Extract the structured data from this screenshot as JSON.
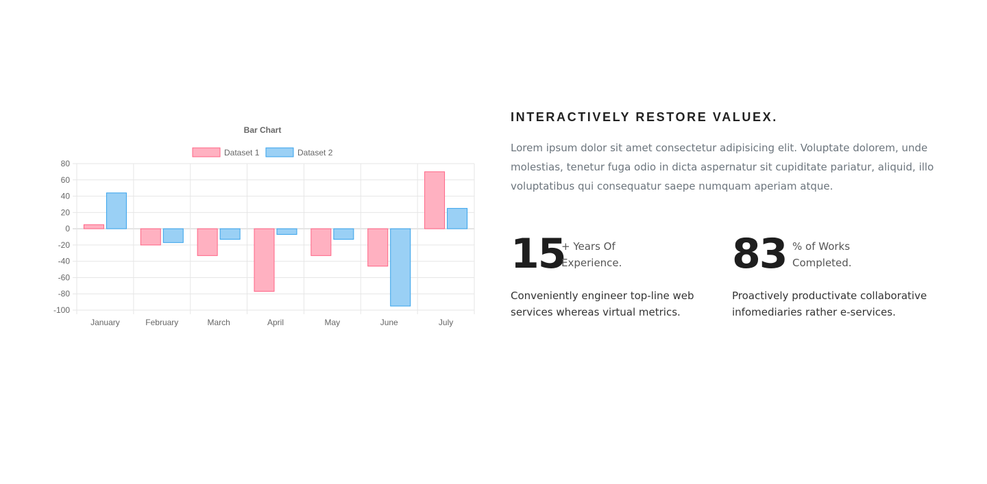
{
  "chart_data": {
    "type": "bar",
    "title": "Bar Chart",
    "categories": [
      "January",
      "February",
      "March",
      "April",
      "May",
      "June",
      "July"
    ],
    "series": [
      {
        "name": "Dataset 1",
        "values": [
          5,
          -20,
          -33,
          -77,
          -33,
          -46,
          70
        ],
        "color": "#ffb1c1",
        "border": "#ff6384"
      },
      {
        "name": "Dataset 2",
        "values": [
          44,
          -17,
          -13,
          -7,
          -13,
          -95,
          25
        ],
        "color": "#9ad0f5",
        "border": "#36a2eb"
      }
    ],
    "ylim": [
      -100,
      80
    ],
    "yticks": [
      "80",
      "60",
      "40",
      "20",
      "0",
      "-20",
      "-40",
      "-60",
      "-80",
      "-100"
    ],
    "grid": true,
    "legend": "top"
  },
  "section": {
    "heading": "INTERACTIVELY RESTORE VALUEX.",
    "paragraph": "Lorem ipsum dolor sit amet consectetur adipisicing elit. Voluptate dolorem, unde molestias, tenetur fuga odio in dicta aspernatur sit cupiditate pariatur, aliquid, illo voluptatibus qui consequatur saepe numquam aperiam atque."
  },
  "stats": [
    {
      "number": "15",
      "label_line1": "+ Years Of",
      "label_line2": "Experience.",
      "description": "Conveniently engineer top-line web services whereas virtual metrics."
    },
    {
      "number": "83",
      "label_line1": "% of Works",
      "label_line2": "Completed.",
      "description": "Proactively productivate collaborative infomediaries rather e-services."
    }
  ]
}
